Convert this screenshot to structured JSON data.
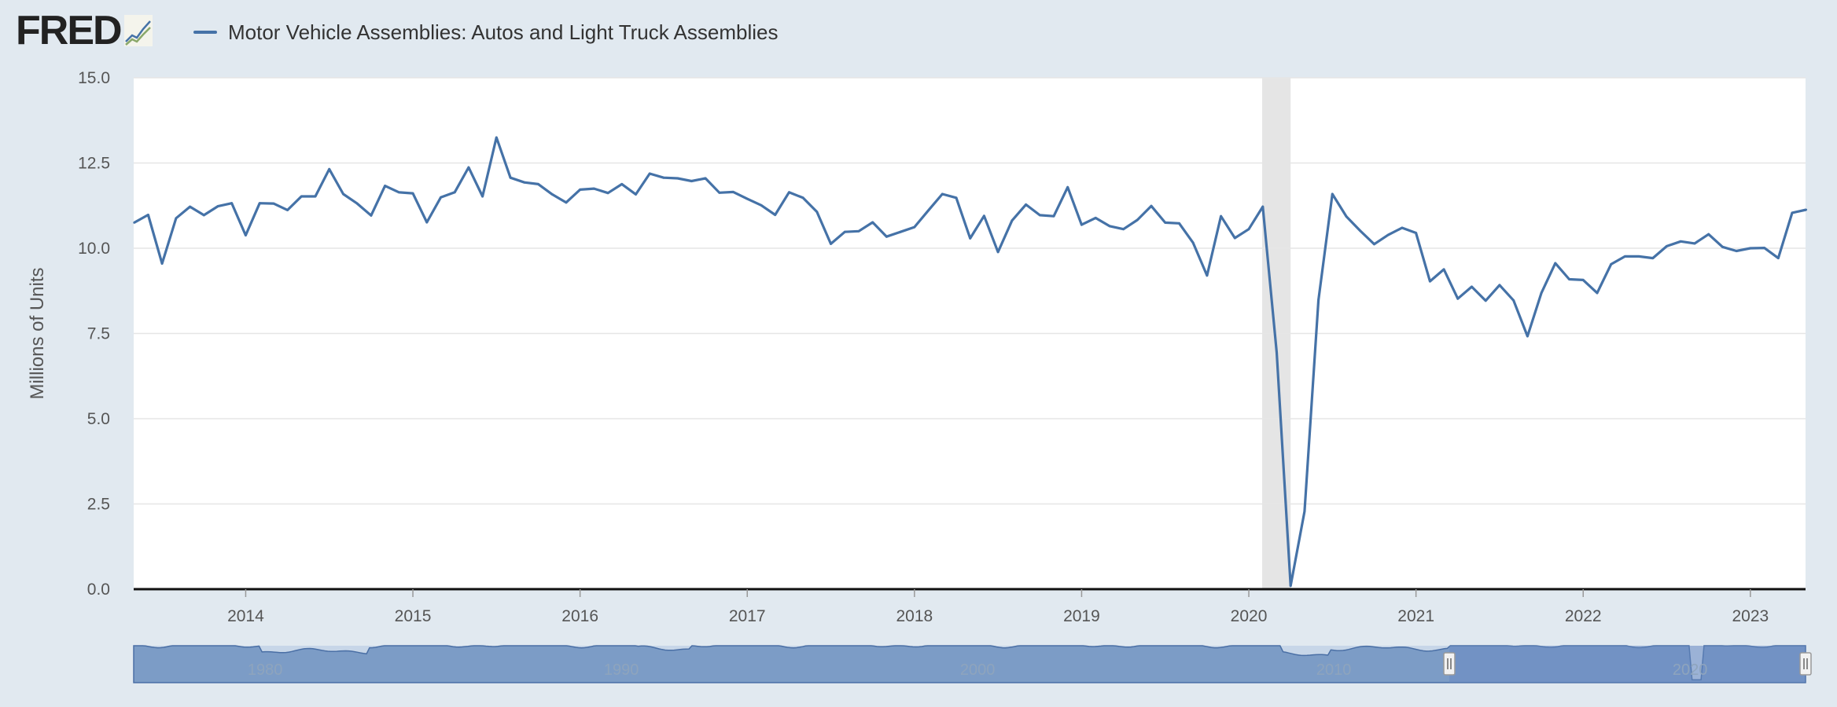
{
  "brand": {
    "logo_text": "FRED"
  },
  "colors": {
    "series": "#4572a7",
    "recession": "#e5e5e5",
    "grid": "#e6e6e6",
    "plot_bg": "#ffffff",
    "page_bg": "#e1e9f0",
    "navigator_fill": "#7c9cc6",
    "navigator_selected": "#6688c2"
  },
  "chart_data": {
    "type": "line",
    "title": "Motor Vehicle Assemblies: Autos and Light Truck Assemblies",
    "ylabel": "Millions of Units",
    "xlabel": "",
    "ylim": [
      0,
      15
    ],
    "yticks": [
      "0.0",
      "2.5",
      "5.0",
      "7.5",
      "10.0",
      "12.5",
      "15.0"
    ],
    "ytick_values": [
      0,
      2.5,
      5,
      7.5,
      10,
      12.5,
      15
    ],
    "xlim": [
      2013.33,
      2023.33
    ],
    "xticks": [
      "2014",
      "2015",
      "2016",
      "2017",
      "2018",
      "2019",
      "2020",
      "2021",
      "2022",
      "2023"
    ],
    "xtick_values": [
      2014,
      2015,
      2016,
      2017,
      2018,
      2019,
      2020,
      2021,
      2022,
      2023
    ],
    "recession": [
      2020.08,
      2020.25
    ],
    "series": [
      {
        "name": "Motor Vehicle Assemblies: Autos and Light Truck Assemblies",
        "start": [
          2013,
          5
        ],
        "frequency": "monthly",
        "values": [
          10.75,
          10.98,
          9.55,
          10.88,
          11.22,
          10.97,
          11.23,
          11.32,
          10.38,
          11.32,
          11.31,
          11.12,
          11.52,
          11.52,
          12.32,
          11.59,
          11.31,
          10.96,
          11.83,
          11.64,
          11.61,
          10.76,
          11.49,
          11.64,
          12.37,
          11.52,
          13.25,
          12.07,
          11.93,
          11.88,
          11.58,
          11.34,
          11.72,
          11.75,
          11.62,
          11.88,
          11.58,
          12.19,
          12.07,
          12.05,
          11.97,
          12.05,
          11.63,
          11.65,
          11.45,
          11.26,
          10.98,
          11.64,
          11.48,
          11.07,
          10.13,
          10.48,
          10.5,
          10.76,
          10.34,
          10.48,
          10.62,
          11.11,
          11.59,
          11.48,
          10.29,
          10.95,
          9.89,
          10.81,
          11.28,
          10.97,
          10.94,
          11.79,
          10.69,
          10.89,
          10.65,
          10.56,
          10.83,
          11.24,
          10.75,
          10.73,
          10.16,
          9.2,
          10.94,
          10.3,
          10.56,
          11.22,
          6.94,
          0.1,
          2.28,
          8.48,
          11.59,
          10.93,
          10.51,
          10.12,
          10.39,
          10.6,
          10.45,
          9.03,
          9.38,
          8.52,
          8.87,
          8.46,
          8.92,
          8.47,
          7.42,
          8.69,
          9.56,
          9.09,
          9.07,
          8.69,
          9.53,
          9.76,
          9.76,
          9.71,
          10.06,
          10.2,
          10.14,
          10.41,
          10.04,
          9.92,
          10.0,
          10.01,
          9.71,
          11.04,
          11.13
        ]
      }
    ],
    "navigator": {
      "xticks": [
        "1980",
        "1990",
        "2000",
        "2010",
        "2020"
      ],
      "xtick_values": [
        1980,
        1990,
        2000,
        2010,
        2020
      ],
      "xlim": [
        1976.4,
        2023.33
      ],
      "selected_range": [
        2013.33,
        2023.33
      ]
    }
  }
}
